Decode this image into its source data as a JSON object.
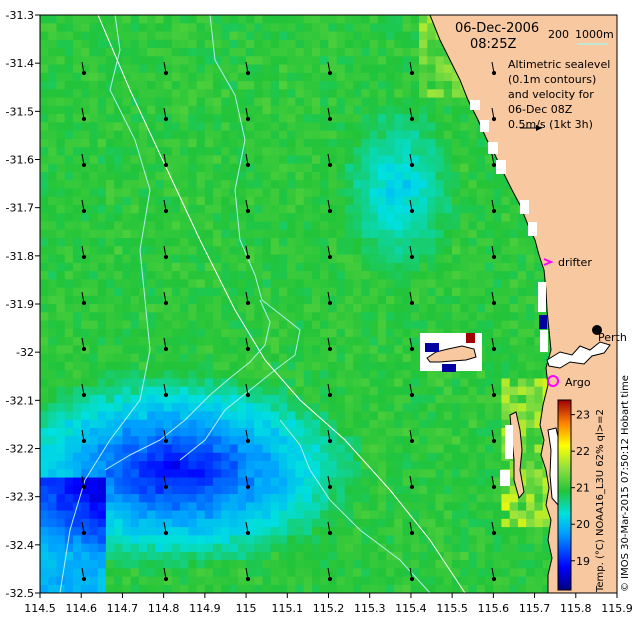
{
  "map": {
    "date": "06-Dec-2006",
    "time": "08:25Z",
    "scale_200": "200",
    "scale_1000": "1000m",
    "legend_line1": "Altimetric sealevel",
    "legend_line2": "(0.1m contours)",
    "legend_line3": "and velocity for",
    "legend_line4": "06-Dec 08Z",
    "legend_line5": "0.5m/s (1kt 3h)",
    "label_drifter": "drifter",
    "label_perth": "Perth",
    "label_argo": "Argo",
    "colorbar_title": "Temp. (°C) NOAA16_L3U 62% ql>=2",
    "credit": "© IMOS 30-Mar-2015 07:50:12 Hobart time",
    "colors": {
      "land": "#f8c8a0",
      "ocean_base": "#22c43a",
      "coast": "#000000",
      "contour": "#aef0e8",
      "drifter": "#ff00ff",
      "argo": "#ff00ff"
    }
  },
  "chart_data": {
    "type": "heatmap",
    "variable": "sea surface temperature (°C)",
    "xlim": [
      114.5,
      115.9
    ],
    "ylim": [
      -32.5,
      -31.3
    ],
    "xticks": [
      "114.5",
      "114.6",
      "114.7",
      "114.8",
      "114.9",
      "115",
      "115.1",
      "115.2",
      "115.3",
      "115.4",
      "115.5",
      "115.6",
      "115.7",
      "115.8",
      "115.9"
    ],
    "yticks": [
      "-31.3",
      "-31.4",
      "-31.5",
      "-31.6",
      "-31.7",
      "-31.8",
      "-31.9",
      "-32",
      "-32.1",
      "-32.2",
      "-32.3",
      "-32.4",
      "-32.5"
    ],
    "colorbar": {
      "range": [
        18.2,
        23.4
      ],
      "ticks": [
        "19",
        "20",
        "21",
        "22",
        "23"
      ]
    }
  }
}
